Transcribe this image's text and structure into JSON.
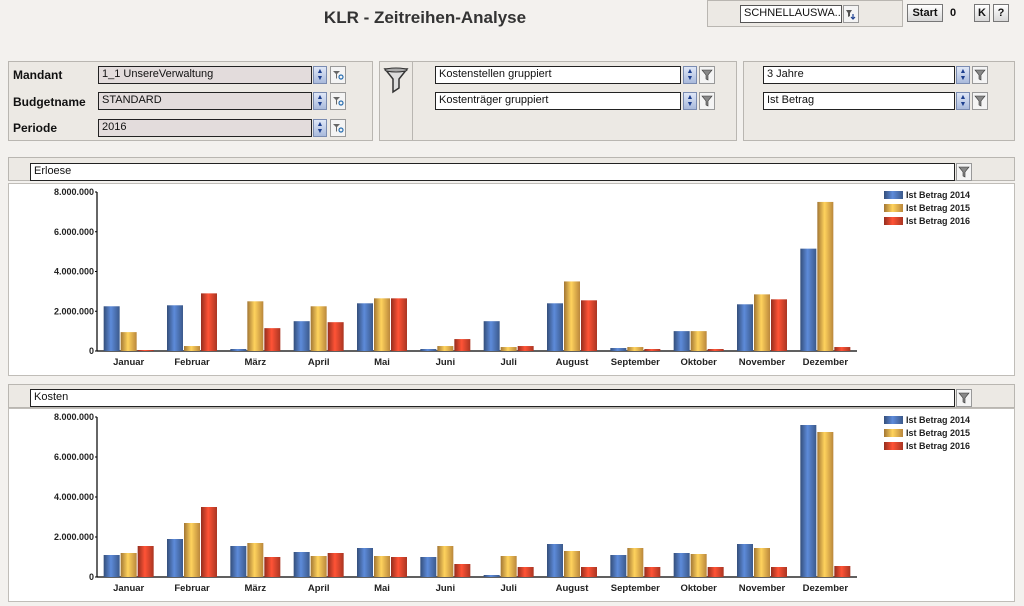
{
  "title": "KLR - Zeitreihen-Analyse",
  "toolbar": {
    "quick_select": "SCHNELLAUSWA...",
    "start_label": "Start",
    "counter": "0",
    "k_label": "K",
    "help_label": "?"
  },
  "filters": {
    "mandant_label": "Mandant",
    "mandant_value": "1_1 UnsereVerwaltung",
    "budget_label": "Budgetname",
    "budget_value": "STANDARD",
    "periode_label": "Periode",
    "periode_value": "2016",
    "kostenstellen": "Kostenstellen gruppiert",
    "kostentraeger": "Kostenträger gruppiert",
    "zeitraum": "3 Jahre",
    "betragsart": "Ist Betrag"
  },
  "colors": {
    "s2014": "#4a6fae",
    "s2015": "#e8a94a",
    "s2016": "#d4422b"
  },
  "chart_data": [
    {
      "type": "bar",
      "section_label": "Erloese",
      "categories": [
        "Januar",
        "Februar",
        "März",
        "April",
        "Mai",
        "Juni",
        "Juli",
        "August",
        "September",
        "Oktober",
        "November",
        "Dezember"
      ],
      "y_ticks": [
        "8.000.000",
        "6.000.000",
        "4.000.000",
        "2.000.000",
        "0"
      ],
      "ylim": [
        0,
        8000000
      ],
      "legend_position": "top-right",
      "series": [
        {
          "name": "Ist Betrag 2014",
          "values": [
            2250000,
            2300000,
            100000,
            1500000,
            2400000,
            100000,
            1500000,
            2400000,
            150000,
            1000000,
            2350000,
            5150000
          ]
        },
        {
          "name": "Ist Betrag 2015",
          "values": [
            950000,
            250000,
            2500000,
            2250000,
            2650000,
            250000,
            200000,
            3500000,
            200000,
            1000000,
            2850000,
            7500000
          ]
        },
        {
          "name": "Ist Betrag 2016",
          "values": [
            50000,
            2900000,
            1150000,
            1450000,
            2650000,
            600000,
            250000,
            2550000,
            100000,
            100000,
            2600000,
            200000
          ]
        }
      ]
    },
    {
      "type": "bar",
      "section_label": "Kosten",
      "categories": [
        "Januar",
        "Februar",
        "März",
        "April",
        "Mai",
        "Juni",
        "Juli",
        "August",
        "September",
        "Oktober",
        "November",
        "Dezember"
      ],
      "y_ticks": [
        "8.000.000",
        "6.000.000",
        "4.000.000",
        "2.000.000",
        "0"
      ],
      "ylim": [
        0,
        8000000
      ],
      "legend_position": "top-right",
      "series": [
        {
          "name": "Ist Betrag 2014",
          "values": [
            1100000,
            1900000,
            1550000,
            1250000,
            1450000,
            1000000,
            100000,
            1650000,
            1100000,
            1200000,
            1650000,
            7600000
          ]
        },
        {
          "name": "Ist Betrag 2015",
          "values": [
            1200000,
            2700000,
            1700000,
            1050000,
            1050000,
            1550000,
            1050000,
            1300000,
            1450000,
            1150000,
            1450000,
            7250000
          ]
        },
        {
          "name": "Ist Betrag 2016",
          "values": [
            1550000,
            3500000,
            1000000,
            1200000,
            1000000,
            650000,
            500000,
            500000,
            500000,
            500000,
            500000,
            550000
          ]
        }
      ]
    }
  ]
}
